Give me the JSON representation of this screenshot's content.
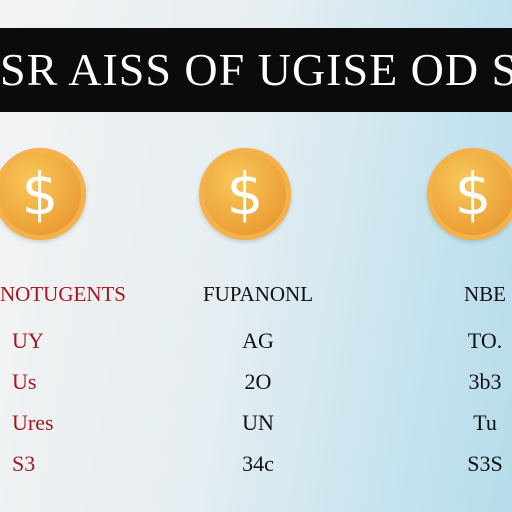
{
  "header": {
    "title": "SR AISS OF UGISE OD SUS"
  },
  "columns": [
    {
      "icon": "$",
      "heading": "NOTUGENTS",
      "rows": [
        "UY",
        "Us",
        "Ures",
        "S3"
      ]
    },
    {
      "icon": "$",
      "heading": "FUPANONL",
      "rows": [
        "AG",
        "2O",
        "UN",
        "34c"
      ]
    },
    {
      "icon": "$",
      "heading": "NBE",
      "rows": [
        "TO.",
        "3b3",
        "Tu",
        "S3S"
      ]
    }
  ]
}
